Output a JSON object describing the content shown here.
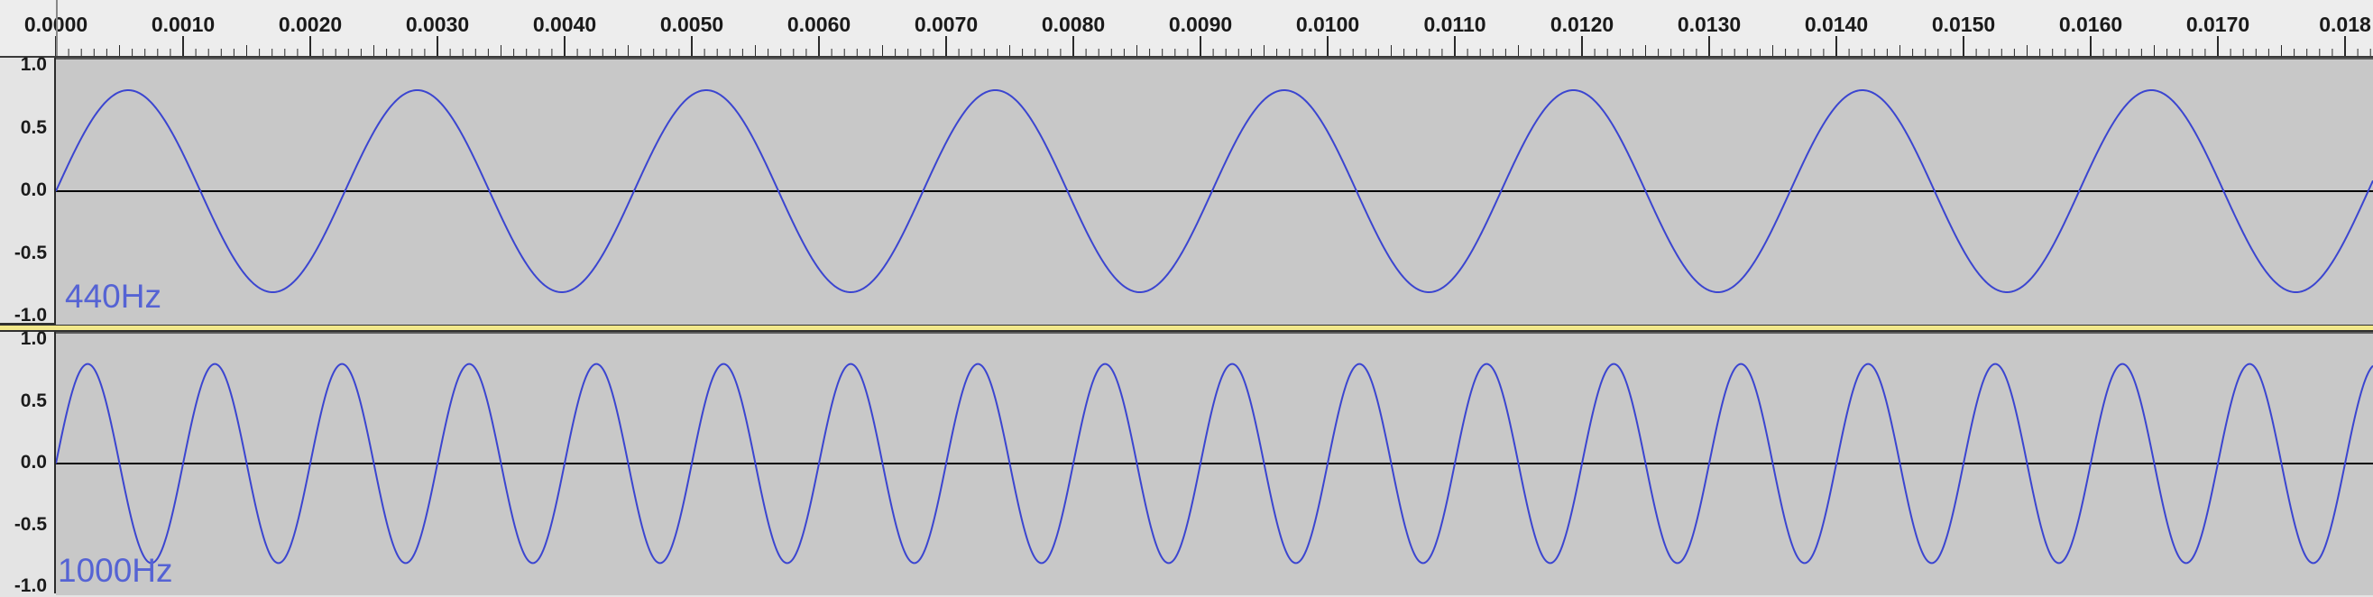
{
  "timeline": {
    "labels": [
      "0.0000",
      "0.0010",
      "0.0020",
      "0.0030",
      "0.0040",
      "0.0050",
      "0.0060",
      "0.0070",
      "0.0080",
      "0.0090",
      "0.0100",
      "0.0110",
      "0.0120",
      "0.0130",
      "0.0140",
      "0.0150",
      "0.0160",
      "0.0170",
      "0.018"
    ],
    "start_seconds": 0.0,
    "step_seconds": 0.001
  },
  "tracks": [
    {
      "name": "440Hz",
      "frequency_hz": 440,
      "amplitude": 0.8,
      "vruler_labels": [
        "1.0",
        "0.5",
        "0.0",
        "-0.5",
        "-1.0"
      ],
      "wave_color": "#3b45d0"
    },
    {
      "name": "1000Hz",
      "frequency_hz": 1000,
      "amplitude": 0.8,
      "vruler_labels": [
        "1.0",
        "0.5",
        "0.0",
        "-0.5",
        "-1.0"
      ],
      "wave_color": "#3b45d0"
    }
  ],
  "colors": {
    "track_background": "#c8c8c8",
    "track_name": "#5563d4",
    "center_line": "#000000"
  }
}
